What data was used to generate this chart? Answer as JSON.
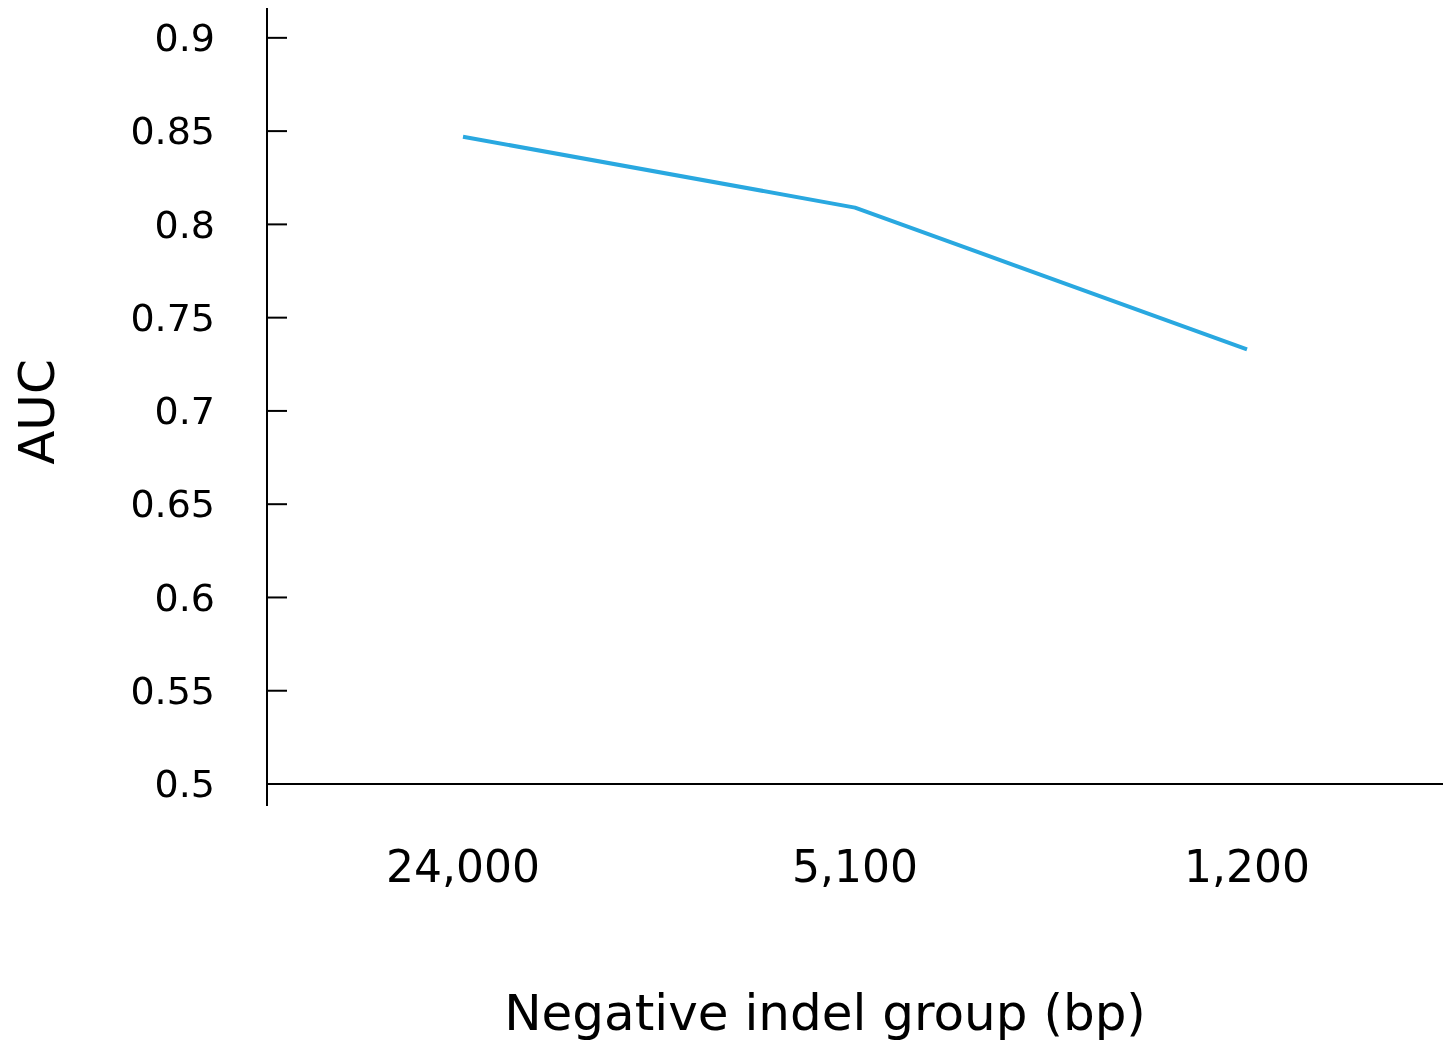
{
  "chart_data": {
    "type": "line",
    "xlabel": "Negative indel group (bp)",
    "ylabel": "AUC",
    "categories": [
      "24,000",
      "5,100",
      "1,200"
    ],
    "series": [
      {
        "color": "#29a8e0",
        "values": [
          0.847,
          0.809,
          0.733
        ]
      }
    ],
    "ylim": [
      0.5,
      0.916
    ],
    "yticks": [
      {
        "value": 0.5,
        "label": "0.5"
      },
      {
        "value": 0.55,
        "label": "0.55"
      },
      {
        "value": 0.6,
        "label": "0.6"
      },
      {
        "value": 0.65,
        "label": "0.65"
      },
      {
        "value": 0.7,
        "label": "0.7"
      },
      {
        "value": 0.75,
        "label": "0.75"
      },
      {
        "value": 0.8,
        "label": "0.8"
      },
      {
        "value": 0.85,
        "label": "0.85"
      },
      {
        "value": 0.9,
        "label": "0.9"
      }
    ],
    "grid": false,
    "marker": "none",
    "line_style": "solid"
  }
}
